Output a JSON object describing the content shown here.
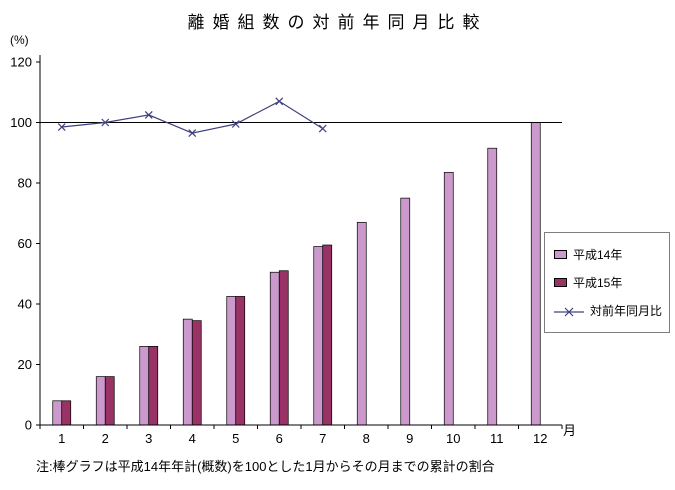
{
  "chart_data": {
    "type": "bar",
    "title": "離婚組数の対前年同月比較",
    "ylabel": "(%)",
    "xlabel": "月",
    "note": "注:棒グラフは平成14年年計(概数)を100とした1月からその月までの累計の割合",
    "categories": [
      "1",
      "2",
      "3",
      "4",
      "5",
      "6",
      "7",
      "8",
      "9",
      "10",
      "11",
      "12"
    ],
    "ylim": [
      0,
      120
    ],
    "yticks": [
      0,
      20,
      40,
      60,
      80,
      100,
      120
    ],
    "reference_line": 100,
    "grid": false,
    "legend_position": "right",
    "series": [
      {
        "name": "平成14年",
        "type": "bar",
        "color": "#cc99cc",
        "values": [
          8,
          16,
          26,
          35,
          42.5,
          50.5,
          59,
          67,
          75,
          83.5,
          91.5,
          100
        ]
      },
      {
        "name": "平成15年",
        "type": "bar",
        "color": "#993366",
        "values": [
          8,
          16,
          26,
          34.5,
          42.5,
          51,
          59.5,
          null,
          null,
          null,
          null,
          null
        ]
      },
      {
        "name": "対前年同月比",
        "type": "line",
        "marker": "x",
        "color": "#404080",
        "values": [
          98.5,
          100,
          102.5,
          96.5,
          99.5,
          107,
          98,
          null,
          null,
          null,
          null,
          null
        ]
      }
    ]
  }
}
